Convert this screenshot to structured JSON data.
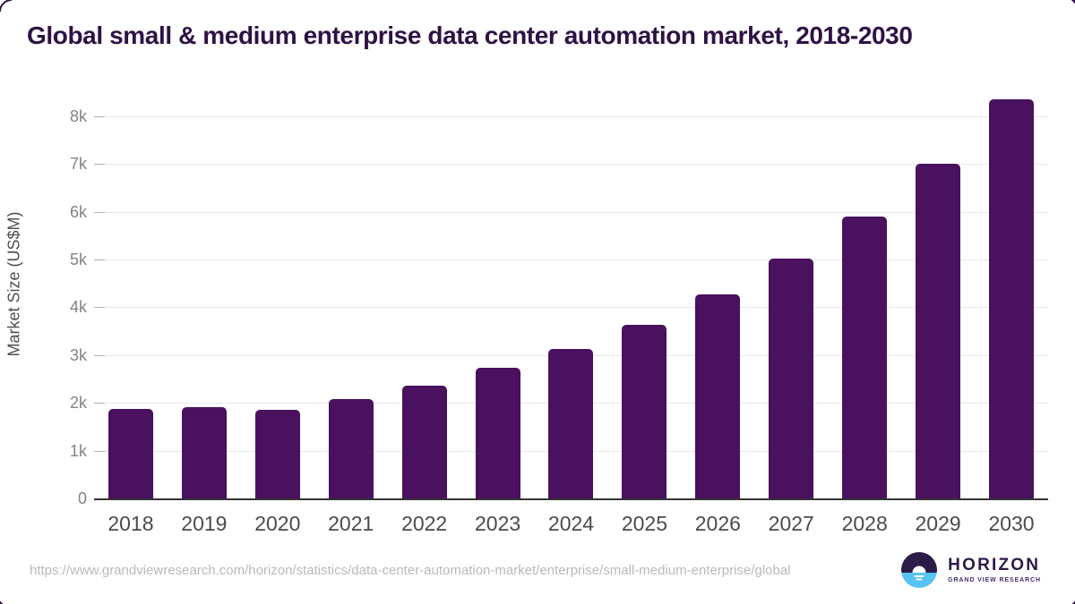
{
  "page": {
    "background": "#ffffff",
    "frame_color": "#2e1245"
  },
  "header": {
    "title": "Global small & medium enterprise data center automation market, 2018-2030",
    "title_color": "#2e1245"
  },
  "chart_data": {
    "type": "bar",
    "title": "Global small & medium enterprise data center automation market, 2018-2030",
    "xlabel": "",
    "ylabel": "Market Size (US$M)",
    "unit": "US$M",
    "categories": [
      "2018",
      "2019",
      "2020",
      "2021",
      "2022",
      "2023",
      "2024",
      "2025",
      "2026",
      "2027",
      "2028",
      "2029",
      "2030"
    ],
    "values": [
      1870,
      1910,
      1855,
      2080,
      2360,
      2735,
      3130,
      3630,
      4270,
      5020,
      5900,
      7000,
      8350
    ],
    "ylim": [
      0,
      8560
    ],
    "yticks": {
      "values": [
        0,
        1000,
        2000,
        3000,
        4000,
        5000,
        6000,
        7000,
        8000
      ],
      "labels": [
        "0",
        "1k",
        "2k",
        "3k",
        "4k",
        "5k",
        "6k",
        "7k",
        "8k"
      ]
    },
    "grid": "horizontal",
    "legend": "none",
    "bar_color": "#49115e",
    "axis_color": "#333333",
    "gridline_color": "#e7e7e7"
  },
  "footer": {
    "url": "https://www.grandviewresearch.com/horizon/statistics/data-center-automation-market/enterprise/small-medium-enterprise/global"
  },
  "logo": {
    "brand": "HORIZON",
    "subtitle": "GRAND VIEW RESEARCH",
    "icon": "horizon-sun-circle",
    "dark_color": "#2b1b49",
    "blue_color": "#57c3f2"
  }
}
